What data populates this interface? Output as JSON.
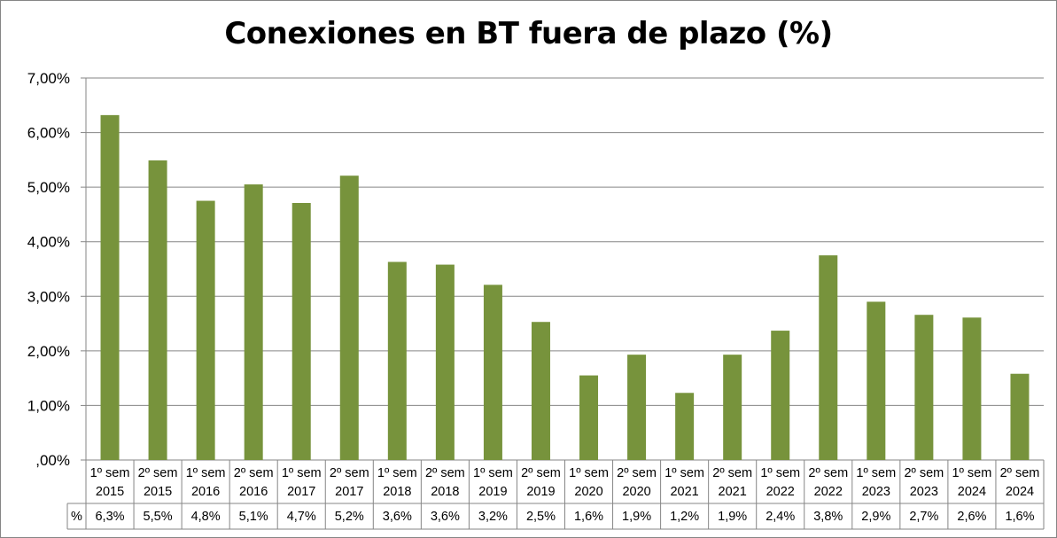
{
  "chart_data": {
    "type": "bar",
    "title": "Conexiones en BT fuera de plazo (%)",
    "xlabel": "",
    "ylabel": "",
    "ylim": [
      0,
      7
    ],
    "y_ticks": [
      ",00%",
      "1,00%",
      "2,00%",
      "3,00%",
      "4,00%",
      "5,00%",
      "6,00%",
      "7,00%"
    ],
    "grid": true,
    "legend": "none",
    "bar_color": "#77933C",
    "categories": [
      [
        "1º sem",
        "2015"
      ],
      [
        "2º sem",
        "2015"
      ],
      [
        "1º sem",
        "2016"
      ],
      [
        "2º sem",
        "2016"
      ],
      [
        "1º sem",
        "2017"
      ],
      [
        "2º sem",
        "2017"
      ],
      [
        "1º sem",
        "2018"
      ],
      [
        "2º sem",
        "2018"
      ],
      [
        "1º sem",
        "2019"
      ],
      [
        "2º sem",
        "2019"
      ],
      [
        "1º sem",
        "2020"
      ],
      [
        "2º sem",
        "2020"
      ],
      [
        "1º sem",
        "2021"
      ],
      [
        "2º sem",
        "2021"
      ],
      [
        "1º sem",
        "2022"
      ],
      [
        "2º sem",
        "2022"
      ],
      [
        "1º sem",
        "2023"
      ],
      [
        "2º sem",
        "2023"
      ],
      [
        "1º sem",
        "2024"
      ],
      [
        "2º sem",
        "2024"
      ]
    ],
    "values": [
      6.32,
      5.49,
      4.75,
      5.05,
      4.71,
      5.21,
      3.63,
      3.58,
      3.21,
      2.53,
      1.55,
      1.93,
      1.23,
      1.93,
      2.37,
      3.75,
      2.9,
      2.66,
      2.61,
      1.58
    ],
    "table": {
      "row_label": "%",
      "values": [
        "6,3%",
        "5,5%",
        "4,8%",
        "5,1%",
        "4,7%",
        "5,2%",
        "3,6%",
        "3,6%",
        "3,2%",
        "2,5%",
        "1,6%",
        "1,9%",
        "1,2%",
        "1,9%",
        "2,4%",
        "3,8%",
        "2,9%",
        "2,7%",
        "2,6%",
        "1,6%"
      ]
    }
  }
}
